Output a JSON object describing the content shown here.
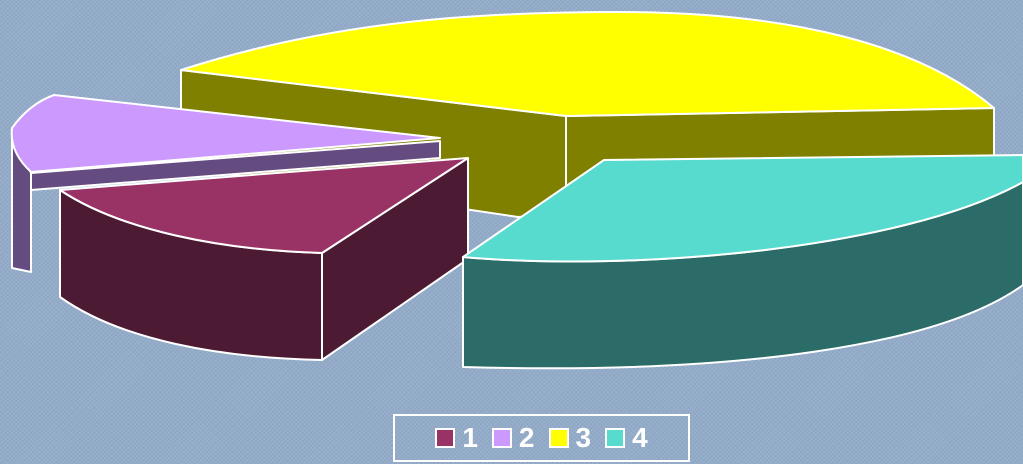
{
  "chart_data": {
    "type": "pie",
    "style": "3d-exploded",
    "legend_position": "bottom",
    "categories": [
      "1",
      "2",
      "3",
      "4"
    ],
    "values": [
      11,
      9,
      50,
      30
    ],
    "colors": {
      "1": {
        "top": "#993366",
        "side": "#4d1a33"
      },
      "2": {
        "top": "#cc99ff",
        "side": "#654c80"
      },
      "3": {
        "top": "#ffff00",
        "side": "#808000"
      },
      "4": {
        "top": "#57dbcf",
        "side": "#2c6c68"
      }
    }
  }
}
